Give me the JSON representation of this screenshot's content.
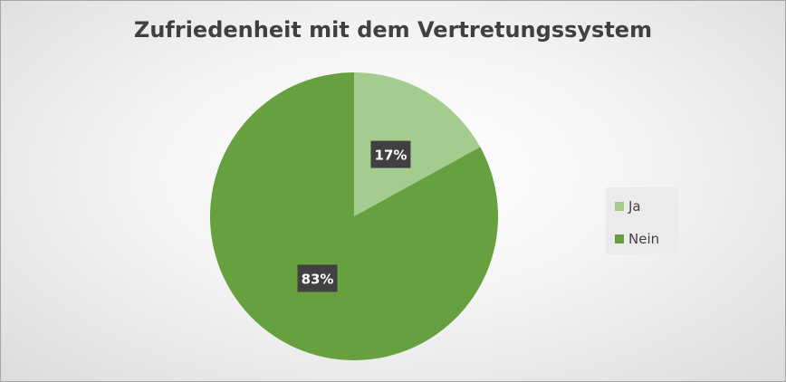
{
  "chart_data": {
    "type": "pie",
    "title": "Zufriedenheit mit dem Vertretungssystem",
    "categories": [
      "Ja",
      "Nein"
    ],
    "values": [
      17,
      83
    ],
    "labels": [
      "17%",
      "83%"
    ],
    "colors": [
      "#a5cc8f",
      "#66a03f"
    ],
    "legend_position": "right"
  }
}
